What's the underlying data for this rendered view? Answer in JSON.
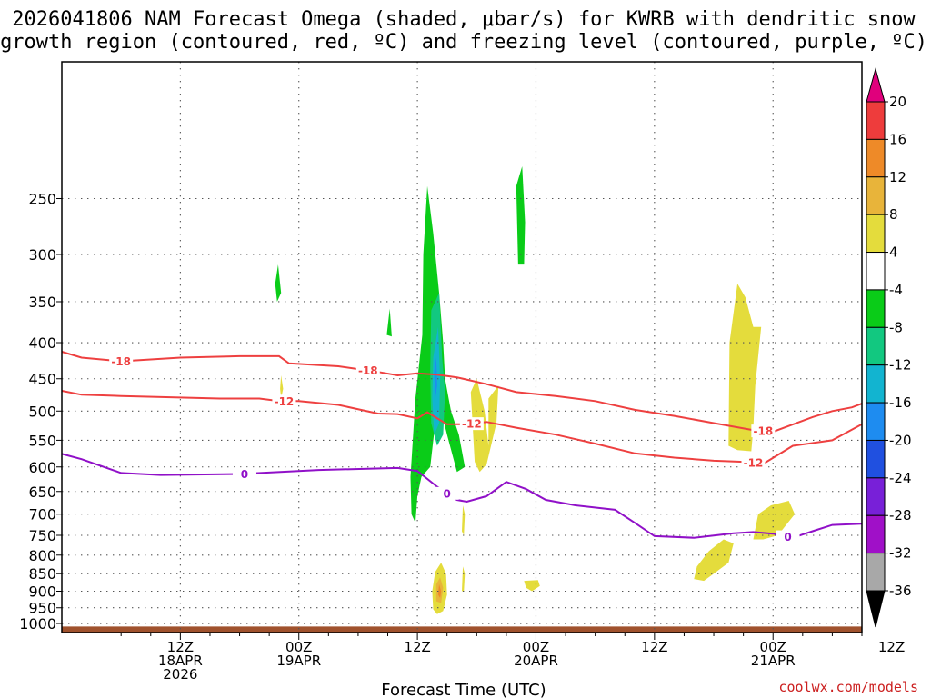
{
  "page": {
    "title_line1": "2026041806 NAM Forecast Omega (shaded, μbar/s) for KWRB with dendritic snow",
    "title_line2": "growth region (contoured, red, ºC) and freezing level (contoured, purple, ºC)",
    "credit": "coolwx.com/models"
  },
  "chart_data": {
    "type": "heatmap",
    "xlabel": "Forecast Time (UTC)",
    "x_unit": "forecast hour",
    "xlim": [
      -6,
      75
    ],
    "x_ticks": [
      {
        "hour": 6,
        "lines": [
          "12Z",
          "18APR",
          "2026"
        ]
      },
      {
        "hour": 18,
        "lines": [
          "00Z",
          "19APR"
        ]
      },
      {
        "hour": 30,
        "lines": [
          "12Z"
        ]
      },
      {
        "hour": 42,
        "lines": [
          "00Z",
          "20APR"
        ]
      },
      {
        "hour": 54,
        "lines": [
          "12Z"
        ]
      },
      {
        "hour": 66,
        "lines": [
          "00Z",
          "21APR"
        ]
      },
      {
        "hour": 78,
        "lines": [
          "12Z"
        ]
      }
    ],
    "y_unit": "hPa",
    "ylim": [
      1030,
      160
    ],
    "y_ticks": [
      250,
      300,
      350,
      400,
      450,
      500,
      550,
      600,
      650,
      700,
      750,
      800,
      850,
      900,
      950,
      1000
    ],
    "colorbar": {
      "unit": "μbar/s",
      "bins": [
        {
          "lo": 20,
          "hi": null,
          "color": "#e0007c"
        },
        {
          "lo": 16,
          "hi": 20,
          "color": "#ee3c3c"
        },
        {
          "lo": 12,
          "hi": 16,
          "color": "#ee8a28"
        },
        {
          "lo": 8,
          "hi": 12,
          "color": "#e8b43a"
        },
        {
          "lo": 4,
          "hi": 8,
          "color": "#e4dc3c"
        },
        {
          "lo": -4,
          "hi": 4,
          "color": "#ffffff"
        },
        {
          "lo": -8,
          "hi": -4,
          "color": "#0acc18"
        },
        {
          "lo": -12,
          "hi": -8,
          "color": "#12c880"
        },
        {
          "lo": -16,
          "hi": -12,
          "color": "#12b4d0"
        },
        {
          "lo": -20,
          "hi": -16,
          "color": "#1e8cf0"
        },
        {
          "lo": -24,
          "hi": -20,
          "color": "#2050e0"
        },
        {
          "lo": -28,
          "hi": -24,
          "color": "#7820d8"
        },
        {
          "lo": -32,
          "hi": -28,
          "color": "#a010c8"
        },
        {
          "lo": -36,
          "hi": -32,
          "color": "#a8a8a8"
        },
        {
          "lo": null,
          "hi": -36,
          "color": "#000000"
        }
      ],
      "labels": [
        "20",
        "16",
        "12",
        "8",
        "4",
        "-4",
        "-8",
        "-12",
        "-16",
        "-20",
        "-24",
        "-28",
        "-32",
        "-36"
      ]
    },
    "contours": [
      {
        "name": "dendritic -18C",
        "value": -18,
        "color": "#ee4040",
        "label": "-18",
        "label_hours": [
          0,
          25,
          65
        ],
        "points": [
          [
            -6,
            412
          ],
          [
            -4,
            420
          ],
          [
            0,
            425
          ],
          [
            6,
            420
          ],
          [
            12,
            418
          ],
          [
            16,
            418
          ],
          [
            17,
            428
          ],
          [
            22,
            432
          ],
          [
            26,
            440
          ],
          [
            28,
            445
          ],
          [
            30,
            442
          ],
          [
            32,
            444
          ],
          [
            34,
            448
          ],
          [
            37,
            458
          ],
          [
            40,
            470
          ],
          [
            44,
            476
          ],
          [
            48,
            484
          ],
          [
            52,
            498
          ],
          [
            56,
            508
          ],
          [
            60,
            520
          ],
          [
            64,
            532
          ],
          [
            66,
            535
          ],
          [
            70,
            510
          ],
          [
            72,
            500
          ],
          [
            74,
            494
          ],
          [
            75,
            488
          ]
        ]
      },
      {
        "name": "dendritic -12C",
        "value": -12,
        "color": "#ee4040",
        "label": "-12",
        "label_hours": [
          16.5,
          35.5,
          64
        ],
        "points": [
          [
            -6,
            468
          ],
          [
            -4,
            474
          ],
          [
            0,
            476
          ],
          [
            10,
            480
          ],
          [
            14,
            480
          ],
          [
            16,
            484
          ],
          [
            18,
            484
          ],
          [
            22,
            490
          ],
          [
            26,
            504
          ],
          [
            28,
            505
          ],
          [
            30,
            512
          ],
          [
            31,
            502
          ],
          [
            33,
            522
          ],
          [
            35,
            522
          ],
          [
            37,
            518
          ],
          [
            40,
            528
          ],
          [
            44,
            540
          ],
          [
            48,
            556
          ],
          [
            52,
            574
          ],
          [
            56,
            582
          ],
          [
            60,
            588
          ],
          [
            63,
            590
          ],
          [
            65,
            594
          ],
          [
            68,
            560
          ],
          [
            72,
            550
          ],
          [
            75,
            522
          ]
        ]
      },
      {
        "name": "freezing level 0C",
        "value": 0,
        "color": "#9010c8",
        "label": "0",
        "label_hours": [
          12.5,
          33,
          67.5
        ],
        "points": [
          [
            -6,
            575
          ],
          [
            -4,
            585
          ],
          [
            0,
            612
          ],
          [
            4,
            616
          ],
          [
            12,
            614
          ],
          [
            20,
            606
          ],
          [
            28,
            602
          ],
          [
            30,
            608
          ],
          [
            32,
            640
          ],
          [
            34,
            668
          ],
          [
            35,
            672
          ],
          [
            37,
            660
          ],
          [
            39,
            630
          ],
          [
            41,
            645
          ],
          [
            43,
            668
          ],
          [
            46,
            680
          ],
          [
            50,
            690
          ],
          [
            52,
            720
          ],
          [
            54,
            752
          ],
          [
            58,
            756
          ],
          [
            62,
            745
          ],
          [
            64,
            742
          ],
          [
            66,
            746
          ],
          [
            68,
            756
          ],
          [
            70,
            740
          ],
          [
            72,
            725
          ],
          [
            75,
            722
          ]
        ]
      }
    ],
    "shaded_regions": [
      {
        "name": "upward motion core",
        "value_bin": "-8 to -4",
        "color": "#0acc18",
        "points": [
          [
            29.3,
            620
          ],
          [
            29.8,
            480
          ],
          [
            30.5,
            390
          ],
          [
            30.6,
            300
          ],
          [
            31.0,
            240
          ],
          [
            31.6,
            280
          ],
          [
            32.2,
            340
          ],
          [
            32.6,
            400
          ],
          [
            32.8,
            450
          ],
          [
            33.4,
            500
          ],
          [
            34.2,
            540
          ],
          [
            34.8,
            600
          ],
          [
            34.0,
            610
          ],
          [
            33.0,
            540
          ],
          [
            32.4,
            500
          ],
          [
            31.8,
            520
          ],
          [
            31.3,
            600
          ],
          [
            30.4,
            620
          ],
          [
            30.0,
            660
          ],
          [
            29.8,
            720
          ],
          [
            29.4,
            700
          ]
        ]
      },
      {
        "name": "upward motion -8 to -12",
        "value_bin": "-12 to -8",
        "color": "#12c880",
        "points": [
          [
            31.4,
            360
          ],
          [
            32.2,
            340
          ],
          [
            32.5,
            420
          ],
          [
            32.8,
            470
          ],
          [
            32.6,
            540
          ],
          [
            32.0,
            560
          ],
          [
            31.4,
            520
          ],
          [
            31.3,
            440
          ]
        ]
      },
      {
        "name": "upward motion -12 to -16",
        "value_bin": "-16 to -12",
        "color": "#12b4d0",
        "points": [
          [
            31.6,
            420
          ],
          [
            32.1,
            380
          ],
          [
            32.3,
            450
          ],
          [
            32.2,
            520
          ],
          [
            31.7,
            540
          ],
          [
            31.5,
            480
          ]
        ]
      },
      {
        "name": "upward motion -16 to -20",
        "value_bin": "-20 to -16",
        "color": "#1e8cf0",
        "points": [
          [
            31.7,
            440
          ],
          [
            31.9,
            420
          ],
          [
            32.0,
            460
          ],
          [
            31.8,
            480
          ]
        ]
      },
      {
        "name": "upper green streak",
        "value_bin": "-8 to -4",
        "color": "#0acc18",
        "points": [
          [
            40.2,
            310
          ],
          [
            40.0,
            240
          ],
          [
            40.6,
            225
          ],
          [
            40.9,
            270
          ],
          [
            40.8,
            310
          ]
        ]
      },
      {
        "name": "small green patch A",
        "value_bin": "-8 to -4",
        "color": "#0acc18",
        "points": [
          [
            15.6,
            330
          ],
          [
            15.9,
            310
          ],
          [
            16.2,
            340
          ],
          [
            15.8,
            350
          ]
        ]
      },
      {
        "name": "small green patch B",
        "value_bin": "-8 to -4",
        "color": "#0acc18",
        "points": [
          [
            26.9,
            390
          ],
          [
            27.2,
            358
          ],
          [
            27.4,
            392
          ]
        ]
      },
      {
        "name": "downward motion 4-8 middle",
        "value_bin": "4 to 8",
        "color": "#e4dc3c",
        "points": [
          [
            35.8,
            590
          ],
          [
            35.4,
            470
          ],
          [
            36.0,
            450
          ],
          [
            36.8,
            500
          ],
          [
            37.2,
            560
          ],
          [
            37.2,
            480
          ],
          [
            38.2,
            460
          ],
          [
            38.0,
            520
          ],
          [
            37.0,
            595
          ],
          [
            36.3,
            610
          ]
        ]
      },
      {
        "name": "downward motion 4-8 right",
        "value_bin": "4 to 8",
        "color": "#e4dc3c",
        "points": [
          [
            61.5,
            560
          ],
          [
            61.6,
            400
          ],
          [
            62.4,
            330
          ],
          [
            63.2,
            345
          ],
          [
            64.0,
            380
          ],
          [
            64.8,
            380
          ],
          [
            64.2,
            460
          ],
          [
            64.0,
            530
          ],
          [
            63.8,
            570
          ],
          [
            62.4,
            568
          ]
        ]
      },
      {
        "name": "downward motion 4-8 lower right",
        "value_bin": "4 to 8",
        "color": "#e4dc3c",
        "points": [
          [
            64.0,
            760
          ],
          [
            64.5,
            700
          ],
          [
            65.8,
            680
          ],
          [
            67.6,
            670
          ],
          [
            68.2,
            700
          ],
          [
            67.5,
            720
          ],
          [
            66.5,
            750
          ],
          [
            65.0,
            760
          ]
        ]
      },
      {
        "name": "downward motion 4-8 lowest",
        "value_bin": "4 to 8",
        "color": "#e4dc3c",
        "points": [
          [
            58.0,
            865
          ],
          [
            58.3,
            830
          ],
          [
            59.5,
            790
          ],
          [
            61.0,
            760
          ],
          [
            62.0,
            770
          ],
          [
            61.5,
            820
          ],
          [
            60.0,
            850
          ],
          [
            59.0,
            870
          ]
        ]
      },
      {
        "name": "downward motion 4-8 low level column",
        "value_bin": "4 to 8",
        "color": "#e4dc3c",
        "points": [
          [
            31.6,
            955
          ],
          [
            31.5,
            900
          ],
          [
            31.8,
            845
          ],
          [
            32.4,
            820
          ],
          [
            32.9,
            850
          ],
          [
            33.0,
            910
          ],
          [
            32.6,
            960
          ],
          [
            32.0,
            970
          ]
        ]
      },
      {
        "name": "downward motion 8-12 low level",
        "value_bin": "8 to 12",
        "color": "#e8b43a",
        "points": [
          [
            31.9,
            930
          ],
          [
            31.9,
            880
          ],
          [
            32.3,
            860
          ],
          [
            32.6,
            890
          ],
          [
            32.4,
            935
          ]
        ]
      },
      {
        "name": "downward motion 12-16 low level",
        "value_bin": "12 to 16",
        "color": "#ee8a28",
        "points": [
          [
            32.1,
            910
          ],
          [
            32.2,
            880
          ],
          [
            32.4,
            900
          ],
          [
            32.3,
            920
          ]
        ]
      },
      {
        "name": "thin yellow streak A",
        "value_bin": "4 to 8",
        "color": "#e4dc3c",
        "points": [
          [
            34.5,
            740
          ],
          [
            34.6,
            680
          ],
          [
            34.8,
            700
          ],
          [
            34.7,
            750
          ]
        ]
      },
      {
        "name": "thin yellow streak B",
        "value_bin": "4 to 8",
        "color": "#e4dc3c",
        "points": [
          [
            34.5,
            900
          ],
          [
            34.6,
            830
          ],
          [
            34.8,
            850
          ],
          [
            34.7,
            900
          ]
        ]
      },
      {
        "name": "yellow blob small",
        "value_bin": "4 to 8",
        "color": "#e4dc3c",
        "points": [
          [
            41.0,
            890
          ],
          [
            40.8,
            870
          ],
          [
            42.2,
            868
          ],
          [
            42.4,
            885
          ],
          [
            41.6,
            900
          ]
        ]
      },
      {
        "name": "yellow tiny patch",
        "value_bin": "4 to 8",
        "color": "#e4dc3c",
        "points": [
          [
            16.1,
            465
          ],
          [
            16.2,
            445
          ],
          [
            16.4,
            465
          ],
          [
            16.2,
            480
          ]
        ]
      }
    ],
    "ground": {
      "name": "terrain",
      "color": "#a0522d",
      "top_hPa": 1010
    }
  }
}
